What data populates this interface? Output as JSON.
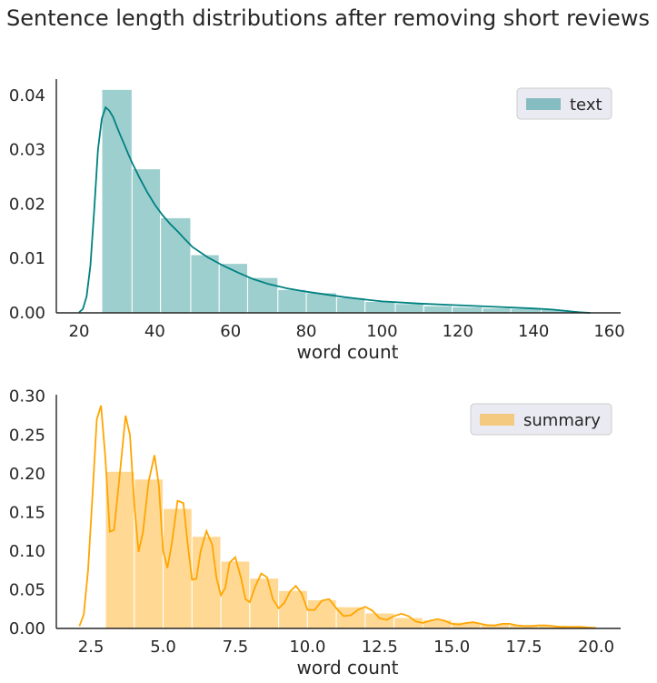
{
  "figure": {
    "title": "Sentence length distributions after removing short reviews"
  },
  "chart_data": [
    {
      "type": "histogram",
      "series_name": "text",
      "legend_placement": "top-right",
      "xlabel": "word count",
      "ylabel": "",
      "xlim": [
        14,
        163
      ],
      "ylim": [
        0,
        0.043
      ],
      "xticks": [
        20,
        40,
        60,
        80,
        100,
        120,
        140,
        160
      ],
      "xtick_labels": [
        "20",
        "40",
        "60",
        "80",
        "100",
        "120",
        "140",
        "160"
      ],
      "yticks": [
        0,
        0.01,
        0.02,
        0.03,
        0.04
      ],
      "ytick_labels": [
        "0.00",
        "0.01",
        "0.02",
        "0.03",
        "0.04"
      ],
      "grid": false,
      "bar_color": "#008080",
      "bar_opacity": 0.38,
      "kde_color": "#008080",
      "bins": [
        {
          "x0": 26,
          "x1": 34,
          "value": 0.0411
        },
        {
          "x0": 34,
          "x1": 41.5,
          "value": 0.0265
        },
        {
          "x0": 41.5,
          "x1": 49.5,
          "value": 0.0175
        },
        {
          "x0": 49.5,
          "x1": 57,
          "value": 0.0107
        },
        {
          "x0": 57,
          "x1": 64.5,
          "value": 0.0091
        },
        {
          "x0": 64.5,
          "x1": 72.5,
          "value": 0.0065
        },
        {
          "x0": 72.5,
          "x1": 80,
          "value": 0.0043
        },
        {
          "x0": 80,
          "x1": 88,
          "value": 0.0037
        },
        {
          "x0": 88,
          "x1": 95.5,
          "value": 0.0028
        },
        {
          "x0": 95.5,
          "x1": 103.5,
          "value": 0.0021
        },
        {
          "x0": 103.5,
          "x1": 111,
          "value": 0.0017
        },
        {
          "x0": 111,
          "x1": 118.5,
          "value": 0.0013
        },
        {
          "x0": 118.5,
          "x1": 126.5,
          "value": 0.0011
        },
        {
          "x0": 126.5,
          "x1": 134,
          "value": 0.0009
        },
        {
          "x0": 134,
          "x1": 142,
          "value": 0.0008
        },
        {
          "x0": 142,
          "x1": 149.5,
          "value": 0.0006
        }
      ],
      "kde": {
        "x": [
          20,
          21,
          22,
          23,
          24,
          25,
          26,
          27,
          28,
          29,
          30,
          31,
          32,
          33,
          34,
          36,
          38,
          40,
          42,
          44,
          46,
          48,
          50,
          54,
          58,
          62,
          66,
          70,
          75,
          80,
          85,
          90,
          95,
          100,
          110,
          120,
          130,
          140,
          145,
          148,
          150,
          152,
          154,
          155
        ],
        "y": [
          0.0001,
          0.0007,
          0.003,
          0.0087,
          0.019,
          0.03,
          0.0357,
          0.0378,
          0.0372,
          0.036,
          0.0342,
          0.0325,
          0.0309,
          0.0292,
          0.0276,
          0.0248,
          0.0222,
          0.0199,
          0.018,
          0.0164,
          0.015,
          0.0135,
          0.0121,
          0.0102,
          0.0087,
          0.0074,
          0.0062,
          0.0053,
          0.0045,
          0.0039,
          0.0034,
          0.0029,
          0.0025,
          0.0021,
          0.0017,
          0.0014,
          0.0011,
          0.0008,
          0.0006,
          0.0004,
          0.00025,
          0.00012,
          4e-05,
          0
        ]
      }
    },
    {
      "type": "histogram",
      "series_name": "summary",
      "legend_placement": "top-right",
      "xlabel": "word count",
      "ylabel": "",
      "xlim": [
        1.3,
        20.85
      ],
      "ylim": [
        0,
        0.302
      ],
      "xticks": [
        2.5,
        5,
        7.5,
        10,
        12.5,
        15,
        17.5,
        20
      ],
      "xtick_labels": [
        "2.5",
        "5.0",
        "7.5",
        "10.0",
        "12.5",
        "15.0",
        "17.5",
        "20.0"
      ],
      "yticks": [
        0,
        0.05,
        0.1,
        0.15,
        0.2,
        0.25,
        0.3
      ],
      "ytick_labels": [
        "0.00",
        "0.05",
        "0.10",
        "0.15",
        "0.20",
        "0.25",
        "0.30"
      ],
      "grid": false,
      "bar_color": "#ffa500",
      "bar_opacity": 0.42,
      "kde_color": "#ffa500",
      "bins": [
        {
          "x0": 3,
          "x1": 4,
          "value": 0.203
        },
        {
          "x0": 4,
          "x1": 5,
          "value": 0.193
        },
        {
          "x0": 5,
          "x1": 6,
          "value": 0.155
        },
        {
          "x0": 6,
          "x1": 7,
          "value": 0.119
        },
        {
          "x0": 7,
          "x1": 8,
          "value": 0.087
        },
        {
          "x0": 8,
          "x1": 9,
          "value": 0.065
        },
        {
          "x0": 9,
          "x1": 10,
          "value": 0.049
        },
        {
          "x0": 10,
          "x1": 11,
          "value": 0.037
        },
        {
          "x0": 11,
          "x1": 12,
          "value": 0.028
        },
        {
          "x0": 12,
          "x1": 13,
          "value": 0.02
        },
        {
          "x0": 13,
          "x1": 14,
          "value": 0.014
        },
        {
          "x0": 14,
          "x1": 15,
          "value": 0.011
        },
        {
          "x0": 15,
          "x1": 16,
          "value": 0.008
        },
        {
          "x0": 16,
          "x1": 17,
          "value": 0.006
        },
        {
          "x0": 17,
          "x1": 18,
          "value": 0.005
        },
        {
          "x0": 18,
          "x1": 19,
          "value": 0.004
        },
        {
          "x0": 19,
          "x1": 20,
          "value": 0.003
        }
      ],
      "kde": {
        "x": [
          2.1,
          2.25,
          2.4,
          2.55,
          2.7,
          2.85,
          3.0,
          3.15,
          3.3,
          3.5,
          3.7,
          3.85,
          4.0,
          4.15,
          4.3,
          4.5,
          4.7,
          4.85,
          5.0,
          5.15,
          5.3,
          5.5,
          5.7,
          5.85,
          6.0,
          6.15,
          6.3,
          6.5,
          6.7,
          6.85,
          7.0,
          7.15,
          7.3,
          7.5,
          7.7,
          7.85,
          8.0,
          8.2,
          8.4,
          8.6,
          8.8,
          9.0,
          9.2,
          9.4,
          9.6,
          9.8,
          10.0,
          10.25,
          10.5,
          10.75,
          11.0,
          11.25,
          11.5,
          11.75,
          12.0,
          12.25,
          12.5,
          12.75,
          13.0,
          13.25,
          13.5,
          13.75,
          14.0,
          14.25,
          14.5,
          14.75,
          15.0,
          15.25,
          15.5,
          15.75,
          16.0,
          16.25,
          16.5,
          16.75,
          17.0,
          17.25,
          17.5,
          17.75,
          18.0,
          18.25,
          18.5,
          18.75,
          19.0,
          19.25,
          19.5,
          19.75,
          20.0
        ],
        "y": [
          0.003,
          0.018,
          0.075,
          0.17,
          0.27,
          0.288,
          0.22,
          0.125,
          0.127,
          0.2,
          0.275,
          0.25,
          0.16,
          0.099,
          0.124,
          0.19,
          0.224,
          0.185,
          0.1,
          0.078,
          0.11,
          0.165,
          0.162,
          0.11,
          0.063,
          0.064,
          0.1,
          0.126,
          0.108,
          0.065,
          0.043,
          0.052,
          0.085,
          0.092,
          0.065,
          0.038,
          0.034,
          0.055,
          0.071,
          0.066,
          0.038,
          0.026,
          0.033,
          0.048,
          0.055,
          0.045,
          0.024,
          0.024,
          0.036,
          0.038,
          0.026,
          0.016,
          0.017,
          0.024,
          0.028,
          0.023,
          0.013,
          0.011,
          0.016,
          0.019,
          0.016,
          0.009,
          0.007,
          0.01,
          0.012,
          0.01,
          0.006,
          0.005,
          0.007,
          0.008,
          0.006,
          0.004,
          0.004,
          0.006,
          0.006,
          0.004,
          0.003,
          0.003,
          0.004,
          0.004,
          0.003,
          0.002,
          0.002,
          0.002,
          0.002,
          0.001,
          0.0005
        ]
      }
    }
  ]
}
